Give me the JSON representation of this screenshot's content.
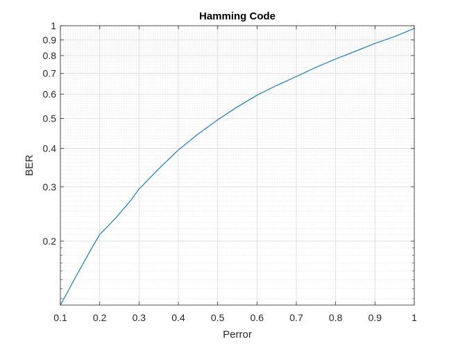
{
  "chart_data": {
    "type": "line",
    "title": "Hamming Code",
    "xlabel": "Perror",
    "ylabel": "BER",
    "xlim": [
      0.1,
      1
    ],
    "ylim": [
      0.124,
      1
    ],
    "yscale": "log",
    "grid": true,
    "minor_grid": true,
    "x_ticks": [
      0.1,
      0.2,
      0.3,
      0.4,
      0.5,
      0.6,
      0.7,
      0.8,
      0.9,
      1
    ],
    "x_tick_labels": [
      "0.1",
      "0.2",
      "0.3",
      "0.4",
      "0.5",
      "0.6",
      "0.7",
      "0.8",
      "0.9",
      "1"
    ],
    "y_ticks": [
      0.2,
      0.3,
      0.4,
      0.5,
      0.6,
      0.7,
      0.8,
      0.9,
      1
    ],
    "y_tick_labels": [
      "0.2",
      "0.3",
      "0.4",
      "0.5",
      "0.6",
      "0.7",
      "0.8",
      "0.9",
      "1"
    ],
    "series": [
      {
        "color": "#0072bd",
        "x": [
          0.1,
          0.12,
          0.14,
          0.16,
          0.18,
          0.2,
          0.22,
          0.24,
          0.26,
          0.28,
          0.3,
          0.35,
          0.4,
          0.45,
          0.5,
          0.55,
          0.6,
          0.65,
          0.7,
          0.75,
          0.8,
          0.85,
          0.9,
          0.95,
          1.0
        ],
        "y": [
          0.124,
          0.138,
          0.154,
          0.171,
          0.19,
          0.21,
          0.223,
          0.237,
          0.254,
          0.272,
          0.295,
          0.343,
          0.395,
          0.445,
          0.495,
          0.545,
          0.595,
          0.64,
          0.684,
          0.733,
          0.78,
          0.826,
          0.876,
          0.922,
          0.98
        ]
      }
    ]
  }
}
